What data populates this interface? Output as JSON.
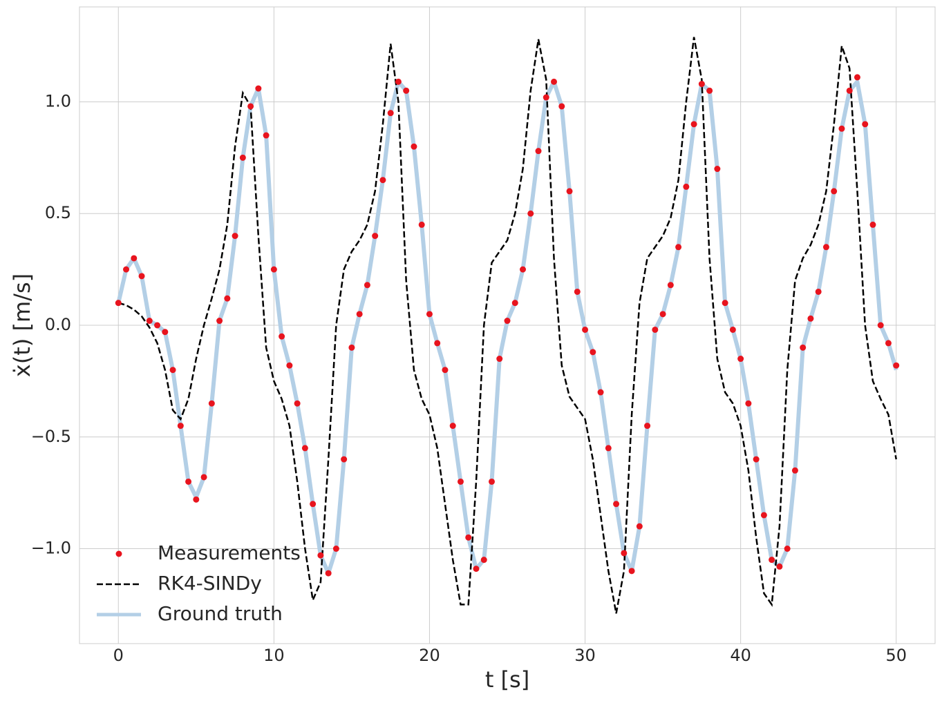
{
  "chart_data": {
    "type": "line",
    "xlabel": "t [s]",
    "ylabel": "ẋ(t) [m/s]",
    "x": [
      0,
      0.5,
      1,
      1.5,
      2,
      2.5,
      3,
      3.5,
      4,
      4.5,
      5,
      5.5,
      6,
      6.5,
      7,
      7.5,
      8,
      8.5,
      9,
      9.5,
      10,
      10.5,
      11,
      11.5,
      12,
      12.5,
      13,
      13.5,
      14,
      14.5,
      15,
      15.5,
      16,
      16.5,
      17,
      17.5,
      18,
      18.5,
      19,
      19.5,
      20,
      20.5,
      21,
      21.5,
      22,
      22.5,
      23,
      23.5,
      24,
      24.5,
      25,
      25.5,
      26,
      26.5,
      27,
      27.5,
      28,
      28.5,
      29,
      29.5,
      30,
      30.5,
      31,
      31.5,
      32,
      32.5,
      33,
      33.5,
      34,
      34.5,
      35,
      35.5,
      36,
      36.5,
      37,
      37.5,
      38,
      38.5,
      39,
      39.5,
      40,
      40.5,
      41,
      41.5,
      42,
      42.5,
      43,
      43.5,
      44,
      44.5,
      45,
      45.5,
      46,
      46.5,
      47,
      47.5,
      48,
      48.5,
      49,
      49.5,
      50
    ],
    "series": [
      {
        "name": "Measurements",
        "color": "#e8141e",
        "style": "points",
        "values": [
          0.1,
          0.25,
          0.3,
          0.22,
          0.02,
          0.0,
          -0.03,
          -0.2,
          -0.45,
          -0.7,
          -0.78,
          -0.68,
          -0.35,
          0.02,
          0.12,
          0.4,
          0.75,
          0.98,
          1.06,
          0.85,
          0.25,
          -0.05,
          -0.18,
          -0.35,
          -0.55,
          -0.8,
          -1.03,
          -1.11,
          -1.0,
          -0.6,
          -0.1,
          0.05,
          0.18,
          0.4,
          0.65,
          0.95,
          1.09,
          1.05,
          0.8,
          0.45,
          0.05,
          -0.08,
          -0.2,
          -0.45,
          -0.7,
          -0.95,
          -1.09,
          -1.05,
          -0.7,
          -0.15,
          0.02,
          0.1,
          0.25,
          0.5,
          0.78,
          1.02,
          1.09,
          0.98,
          0.6,
          0.15,
          -0.02,
          -0.12,
          -0.3,
          -0.55,
          -0.8,
          -1.02,
          -1.1,
          -0.9,
          -0.45,
          -0.02,
          0.05,
          0.18,
          0.35,
          0.62,
          0.9,
          1.08,
          1.05,
          0.7,
          0.1,
          -0.02,
          -0.15,
          -0.35,
          -0.6,
          -0.85,
          -1.05,
          -1.08,
          -1.0,
          -0.65,
          -0.1,
          0.03,
          0.15,
          0.35,
          0.6,
          0.88,
          1.05,
          1.11,
          0.9,
          0.45,
          0.0,
          -0.08,
          -0.18
        ]
      },
      {
        "name": "RK4-SINDy",
        "color": "#000000",
        "style": "dashed",
        "values": [
          0.1,
          0.09,
          0.07,
          0.04,
          -0.01,
          -0.08,
          -0.2,
          -0.38,
          -0.42,
          -0.33,
          -0.15,
          0.0,
          0.12,
          0.25,
          0.45,
          0.8,
          1.04,
          0.98,
          0.4,
          -0.1,
          -0.25,
          -0.33,
          -0.45,
          -0.7,
          -1.0,
          -1.23,
          -1.15,
          -0.6,
          0.0,
          0.25,
          0.33,
          0.38,
          0.45,
          0.6,
          0.9,
          1.26,
          1.0,
          0.2,
          -0.2,
          -0.33,
          -0.4,
          -0.55,
          -0.8,
          -1.05,
          -1.25,
          -1.25,
          -0.7,
          0.0,
          0.28,
          0.33,
          0.38,
          0.5,
          0.7,
          1.05,
          1.28,
          1.1,
          0.3,
          -0.18,
          -0.32,
          -0.37,
          -0.42,
          -0.6,
          -0.85,
          -1.1,
          -1.29,
          -1.1,
          -0.4,
          0.1,
          0.3,
          0.35,
          0.4,
          0.48,
          0.65,
          1.0,
          1.29,
          1.1,
          0.3,
          -0.15,
          -0.3,
          -0.35,
          -0.45,
          -0.65,
          -0.95,
          -1.2,
          -1.25,
          -0.9,
          -0.2,
          0.2,
          0.3,
          0.36,
          0.45,
          0.6,
          0.9,
          1.25,
          1.15,
          0.6,
          0.0,
          -0.25,
          -0.33,
          -0.4,
          -0.6
        ]
      },
      {
        "name": "Ground truth",
        "color": "#b3cfe6",
        "style": "solid",
        "values": [
          0.1,
          0.25,
          0.3,
          0.22,
          0.02,
          0.0,
          -0.03,
          -0.2,
          -0.45,
          -0.7,
          -0.77,
          -0.68,
          -0.35,
          0.02,
          0.12,
          0.4,
          0.75,
          0.98,
          1.06,
          0.85,
          0.25,
          -0.05,
          -0.18,
          -0.35,
          -0.55,
          -0.8,
          -1.03,
          -1.11,
          -1.0,
          -0.6,
          -0.1,
          0.05,
          0.18,
          0.4,
          0.65,
          0.95,
          1.09,
          1.05,
          0.8,
          0.45,
          0.05,
          -0.08,
          -0.2,
          -0.45,
          -0.7,
          -0.95,
          -1.09,
          -1.05,
          -0.7,
          -0.15,
          0.02,
          0.1,
          0.25,
          0.5,
          0.78,
          1.02,
          1.09,
          0.98,
          0.6,
          0.15,
          -0.02,
          -0.12,
          -0.3,
          -0.55,
          -0.8,
          -1.02,
          -1.1,
          -0.9,
          -0.45,
          -0.02,
          0.05,
          0.18,
          0.35,
          0.62,
          0.9,
          1.08,
          1.05,
          0.7,
          0.1,
          -0.02,
          -0.15,
          -0.35,
          -0.6,
          -0.85,
          -1.05,
          -1.08,
          -1.0,
          -0.65,
          -0.1,
          0.03,
          0.15,
          0.35,
          0.6,
          0.88,
          1.05,
          1.09,
          0.9,
          0.45,
          0.0,
          -0.08,
          -0.2
        ]
      }
    ],
    "xlim": [
      -2.5,
      52.5
    ],
    "xticks": [
      0,
      10,
      20,
      30,
      40,
      50
    ],
    "ylim": [
      -1.425,
      1.425
    ],
    "yticks": [
      {
        "value": -1.0,
        "label": "−1.0"
      },
      {
        "value": -0.5,
        "label": "−0.5"
      },
      {
        "value": 0.0,
        "label": "0.0"
      },
      0.5,
      {
        "value": 1.0,
        "label": "1.0"
      }
    ],
    "grid": true,
    "legend": "lower left"
  }
}
